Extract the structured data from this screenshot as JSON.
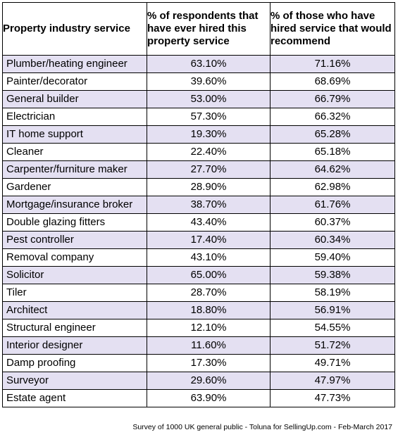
{
  "chart_data": {
    "type": "table",
    "columns": [
      "Property industry service",
      "% of respondents that have ever hired this property service",
      "% of those who have hired service that would recommend"
    ],
    "rows": [
      {
        "service": "Plumber/heating engineer",
        "hired": "63.10%",
        "recommend": "71.16%"
      },
      {
        "service": "Painter/decorator",
        "hired": "39.60%",
        "recommend": "68.69%"
      },
      {
        "service": "General builder",
        "hired": "53.00%",
        "recommend": "66.79%"
      },
      {
        "service": "Electrician",
        "hired": "57.30%",
        "recommend": "66.32%"
      },
      {
        "service": "IT home support",
        "hired": "19.30%",
        "recommend": "65.28%"
      },
      {
        "service": "Cleaner",
        "hired": "22.40%",
        "recommend": "65.18%"
      },
      {
        "service": "Carpenter/furniture maker",
        "hired": "27.70%",
        "recommend": "64.62%"
      },
      {
        "service": "Gardener",
        "hired": "28.90%",
        "recommend": "62.98%"
      },
      {
        "service": "Mortgage/insurance broker",
        "hired": "38.70%",
        "recommend": "61.76%"
      },
      {
        "service": "Double glazing fitters",
        "hired": "43.40%",
        "recommend": "60.37%"
      },
      {
        "service": "Pest controller",
        "hired": "17.40%",
        "recommend": "60.34%"
      },
      {
        "service": "Removal company",
        "hired": "43.10%",
        "recommend": "59.40%"
      },
      {
        "service": "Solicitor",
        "hired": "65.00%",
        "recommend": "59.38%"
      },
      {
        "service": "Tiler",
        "hired": "28.70%",
        "recommend": "58.19%"
      },
      {
        "service": "Architect",
        "hired": "18.80%",
        "recommend": "56.91%"
      },
      {
        "service": "Structural engineer",
        "hired": "12.10%",
        "recommend": "54.55%"
      },
      {
        "service": "Interior designer",
        "hired": "11.60%",
        "recommend": "51.72%"
      },
      {
        "service": "Damp proofing",
        "hired": "17.30%",
        "recommend": "49.71%"
      },
      {
        "service": "Surveyor",
        "hired": "29.60%",
        "recommend": "47.97%"
      },
      {
        "service": "Estate agent",
        "hired": "63.90%",
        "recommend": "47.73%"
      }
    ],
    "source_note": "Survey of 1000 UK general public - Toluna for SellingUp.com - Feb-March 2017"
  },
  "colors": {
    "shaded_row": "#e4e0f2",
    "plain_row": "#ffffff",
    "border": "#000000"
  }
}
